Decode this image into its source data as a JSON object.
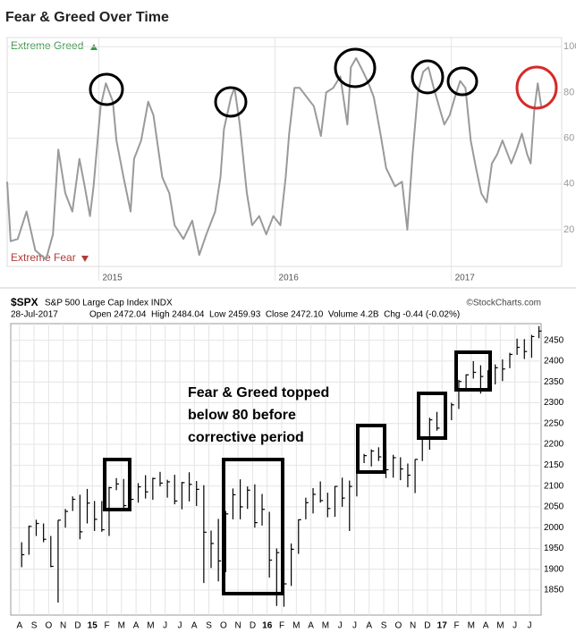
{
  "chart_data": [
    {
      "type": "line",
      "title": "Fear & Greed Over Time",
      "annotations": [
        "Extreme Greed",
        "Extreme Fear"
      ],
      "x": [
        2014.48,
        2014.5,
        2014.54,
        2014.59,
        2014.64,
        2014.7,
        2014.74,
        2014.77,
        2014.81,
        2014.85,
        2014.89,
        2014.92,
        2014.95,
        2014.97,
        2015.01,
        2015.04,
        2015.08,
        2015.1,
        2015.14,
        2015.18,
        2015.2,
        2015.24,
        2015.28,
        2015.31,
        2015.36,
        2015.4,
        2015.43,
        2015.48,
        2015.53,
        2015.57,
        2015.61,
        2015.66,
        2015.69,
        2015.71,
        2015.75,
        2015.77,
        2015.8,
        2015.84,
        2015.87,
        2015.91,
        2015.95,
        2015.99,
        2016.03,
        2016.06,
        2016.08,
        2016.11,
        2016.14,
        2016.18,
        2016.22,
        2016.26,
        2016.29,
        2016.33,
        2016.37,
        2016.41,
        2016.43,
        2016.46,
        2016.5,
        2016.53,
        2016.56,
        2016.6,
        2016.63,
        2016.68,
        2016.72,
        2016.75,
        2016.78,
        2016.81,
        2016.84,
        2016.87,
        2016.9,
        2016.93,
        2016.96,
        2016.99,
        2017.02,
        2017.05,
        2017.08,
        2017.11,
        2017.14,
        2017.17,
        2017.2,
        2017.23,
        2017.26,
        2017.29,
        2017.34,
        2017.37,
        2017.4,
        2017.43,
        2017.45,
        2017.47,
        2017.49,
        2017.51
      ],
      "values": [
        41,
        15,
        16,
        28,
        11,
        7,
        18,
        55,
        36,
        28,
        51,
        39,
        26,
        39,
        74,
        84,
        76,
        59,
        43,
        28,
        51,
        59,
        76,
        70,
        43,
        36,
        22,
        16,
        24,
        9,
        18,
        28,
        43,
        64,
        78,
        82,
        66,
        36,
        22,
        26,
        18,
        26,
        22,
        43,
        62,
        82,
        82,
        78,
        74,
        61,
        80,
        82,
        87,
        66,
        91,
        95,
        89,
        84,
        78,
        61,
        47,
        39,
        41,
        20,
        53,
        80,
        89,
        91,
        82,
        74,
        66,
        70,
        78,
        85,
        82,
        59,
        47,
        36,
        32,
        49,
        53,
        59,
        49,
        55,
        62,
        53,
        49,
        72,
        84,
        74
      ],
      "color": "#9a9a9a",
      "xlim": [
        2014.48,
        2017.56
      ],
      "xticks": [
        2015,
        2016,
        2017
      ],
      "ylim": [
        4,
        104
      ],
      "yticks": [
        20,
        40,
        60,
        80,
        100
      ],
      "grid": true
    },
    {
      "type": "ohlc",
      "title": "$SPX",
      "subtitle": "S&P 500 Large Cap Index INDX",
      "source": "©StockCharts.com",
      "date": "28-Jul-2017",
      "summary": "Open 2472.04  High 2484.04  Low 2459.93  Close 2472.10  Volume 4.2B  Chg -0.44 (-0.02%)",
      "annotation": [
        "Fear & Greed topped",
        "below 80 before",
        "corrective period"
      ],
      "x": [
        0.15,
        0.65,
        1.15,
        1.65,
        2.15,
        2.65,
        3.15,
        3.65,
        4.15,
        4.65,
        5.15,
        5.65,
        6.15,
        6.65,
        7.15,
        7.65,
        8.15,
        8.65,
        9.15,
        9.65,
        10.15,
        10.65,
        11.15,
        11.65,
        12.15,
        12.65,
        13.15,
        13.65,
        14.15,
        14.65,
        15.15,
        15.65,
        16.15,
        16.65,
        17.15,
        17.65,
        18.15,
        18.65,
        19.15,
        19.65,
        20.15,
        20.65,
        21.15,
        21.65,
        22.15,
        22.65,
        23.15,
        23.65,
        24.15,
        24.65,
        25.15,
        25.65,
        26.15,
        26.65,
        27.15,
        27.65,
        28.15,
        28.65,
        29.15,
        29.65,
        30.15,
        30.65,
        31.15,
        31.65,
        32.15,
        32.65,
        33.15,
        33.65,
        34.15,
        34.65,
        35.15,
        35.65
      ],
      "high": [
        1965,
        2005,
        2019,
        2010,
        1980,
        2018,
        2045,
        2075,
        2079,
        2093,
        2064,
        2064,
        2098,
        2119,
        2117,
        2114,
        2107,
        2126,
        2120,
        2134,
        2115,
        2127,
        2110,
        2133,
        2112,
        2102,
        1993,
        2021,
        2040,
        2094,
        2116,
        2099,
        2104,
        2081,
        2038,
        1950,
        1947,
        1962,
        2020,
        2072,
        2095,
        2111,
        2084,
        2100,
        2120,
        2113,
        2165,
        2177,
        2188,
        2193,
        2187,
        2175,
        2169,
        2154,
        2164,
        2214,
        2264,
        2278,
        2282,
        2300,
        2355,
        2368,
        2400,
        2390,
        2378,
        2392,
        2404,
        2420,
        2454,
        2453,
        2463,
        2484
      ],
      "low": [
        1905,
        1935,
        1980,
        1965,
        1905,
        1820,
        2000,
        2040,
        1972,
        2010,
        1992,
        1990,
        1980,
        2090,
        2040,
        2045,
        2060,
        2070,
        2067,
        2099,
        2072,
        2056,
        2044,
        2063,
        2052,
        1867,
        1903,
        1871,
        1893,
        2020,
        2020,
        2045,
        2000,
        2005,
        1880,
        1812,
        1810,
        1860,
        1937,
        2020,
        2034,
        2060,
        2025,
        2026,
        2050,
        1992,
        2075,
        2155,
        2147,
        2160,
        2119,
        2120,
        2114,
        2097,
        2083,
        2160,
        2187,
        2233,
        2233,
        2258,
        2285,
        2334,
        2358,
        2322,
        2328,
        2344,
        2352,
        2383,
        2415,
        2405,
        2408,
        2455
      ],
      "close": [
        1935,
        2003,
        2010,
        1972,
        1907,
        2018,
        2039,
        2068,
        1990,
        2059,
        2020,
        1995,
        2096,
        2105,
        2053,
        2068,
        2098,
        2086,
        2118,
        2107,
        2110,
        2064,
        2108,
        2104,
        2092,
        1989,
        1962,
        1920,
        2033,
        2079,
        2050,
        2090,
        2012,
        2044,
        1922,
        1940,
        1865,
        1948,
        2019,
        2060,
        2080,
        2065,
        2046,
        2099,
        2071,
        2099,
        2161,
        2173,
        2184,
        2170,
        2139,
        2168,
        2141,
        2126,
        2164,
        2213,
        2259,
        2239,
        2275,
        2295,
        2351,
        2367,
        2373,
        2363,
        2349,
        2384,
        2381,
        2416,
        2433,
        2423,
        2459,
        2472
      ],
      "color": "#000000",
      "xlim": [
        -0.6,
        35.8
      ],
      "xticks": [
        {
          "value": 0,
          "label": "A"
        },
        {
          "value": 1,
          "label": "S"
        },
        {
          "value": 2,
          "label": "O"
        },
        {
          "value": 3,
          "label": "N"
        },
        {
          "value": 4,
          "label": "D"
        },
        {
          "value": 5,
          "label": "15"
        },
        {
          "value": 6,
          "label": "F"
        },
        {
          "value": 7,
          "label": "M"
        },
        {
          "value": 8,
          "label": "A"
        },
        {
          "value": 9,
          "label": "M"
        },
        {
          "value": 10,
          "label": "J"
        },
        {
          "value": 11,
          "label": "J"
        },
        {
          "value": 12,
          "label": "A"
        },
        {
          "value": 13,
          "label": "S"
        },
        {
          "value": 14,
          "label": "O"
        },
        {
          "value": 15,
          "label": "N"
        },
        {
          "value": 16,
          "label": "D"
        },
        {
          "value": 17,
          "label": "16"
        },
        {
          "value": 18,
          "label": "F"
        },
        {
          "value": 19,
          "label": "M"
        },
        {
          "value": 20,
          "label": "A"
        },
        {
          "value": 21,
          "label": "M"
        },
        {
          "value": 22,
          "label": "J"
        },
        {
          "value": 23,
          "label": "J"
        },
        {
          "value": 24,
          "label": "A"
        },
        {
          "value": 25,
          "label": "S"
        },
        {
          "value": 26,
          "label": "O"
        },
        {
          "value": 27,
          "label": "N"
        },
        {
          "value": 28,
          "label": "D"
        },
        {
          "value": 29,
          "label": "17"
        },
        {
          "value": 30,
          "label": "F"
        },
        {
          "value": 31,
          "label": "M"
        },
        {
          "value": 32,
          "label": "A"
        },
        {
          "value": 33,
          "label": "M"
        },
        {
          "value": 34,
          "label": "J"
        },
        {
          "value": 35,
          "label": "J"
        }
      ],
      "ylim": [
        1790,
        2490
      ],
      "yticks": [
        1850,
        1900,
        1950,
        2000,
        2050,
        2100,
        2150,
        2200,
        2250,
        2300,
        2350,
        2400,
        2450
      ],
      "grid": true
    }
  ]
}
